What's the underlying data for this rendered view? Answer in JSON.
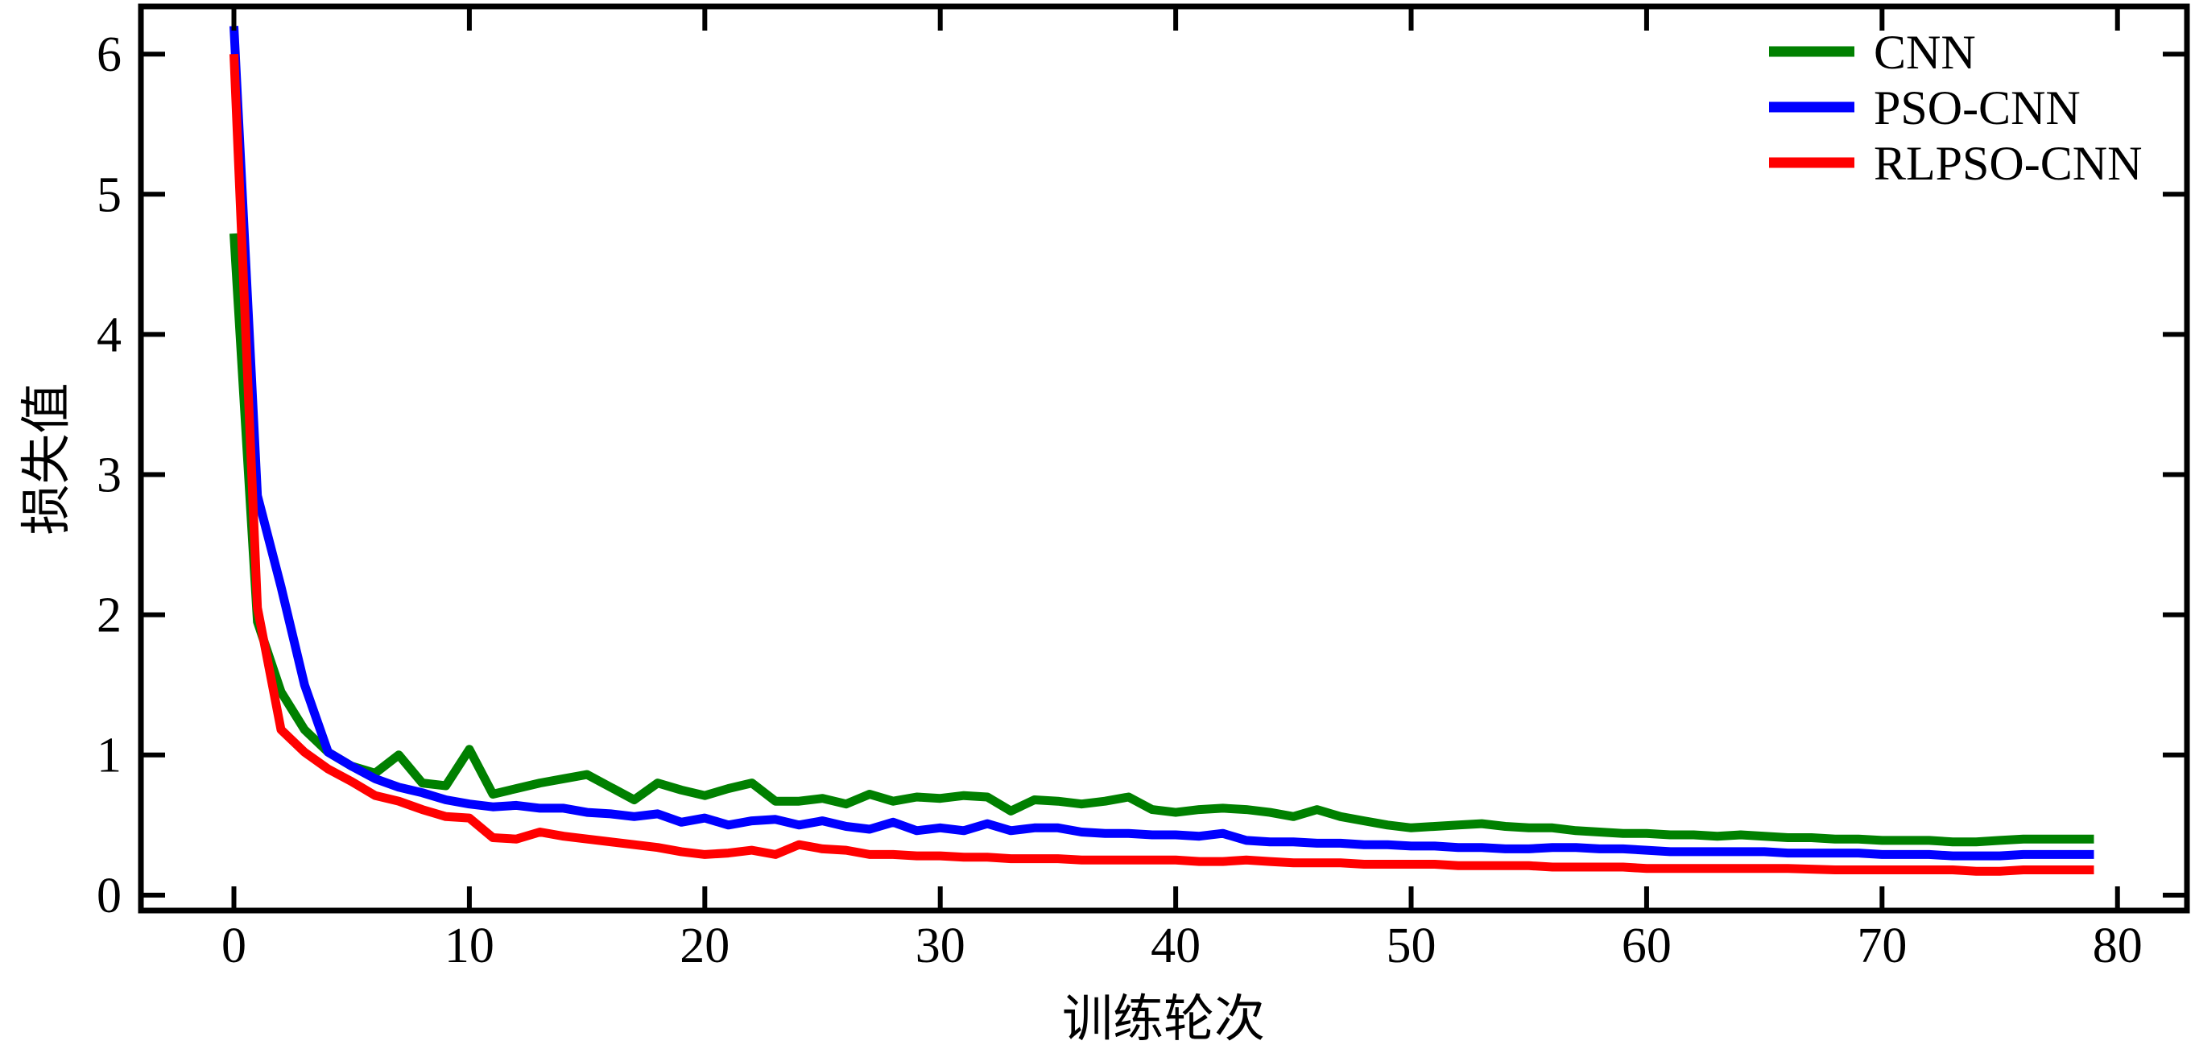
{
  "figure": {
    "background": "#ffffff",
    "xlabel": "训练轮次",
    "ylabel": "损失值",
    "axis_color": "#000000"
  },
  "legend": {
    "position": "upper right"
  },
  "chart_data": {
    "type": "line",
    "title": "",
    "xlabel": "训练轮次",
    "ylabel": "损失值",
    "xlim": [
      -3.95,
      82.95
    ],
    "ylim": [
      -0.11,
      6.34
    ],
    "xticks": [
      0,
      10,
      20,
      30,
      40,
      50,
      60,
      70,
      80
    ],
    "yticks": [
      0,
      1,
      2,
      3,
      4,
      5,
      6
    ],
    "xticklabels": [
      "0",
      "10",
      "20",
      "30",
      "40",
      "50",
      "60",
      "70",
      "80"
    ],
    "yticklabels": [
      "0",
      "1",
      "2",
      "3",
      "4",
      "5",
      "6"
    ],
    "grid": false,
    "legend_position": "upper right",
    "x": [
      0,
      1,
      2,
      3,
      4,
      5,
      6,
      7,
      8,
      9,
      10,
      11,
      12,
      13,
      14,
      15,
      16,
      17,
      18,
      19,
      20,
      21,
      22,
      23,
      24,
      25,
      26,
      27,
      28,
      29,
      30,
      31,
      32,
      33,
      34,
      35,
      36,
      37,
      38,
      39,
      40,
      41,
      42,
      43,
      44,
      45,
      46,
      47,
      48,
      49,
      50,
      51,
      52,
      53,
      54,
      55,
      56,
      57,
      58,
      59,
      60,
      61,
      62,
      63,
      64,
      65,
      66,
      67,
      68,
      69,
      70,
      71,
      72,
      73,
      74,
      75,
      76,
      77,
      78,
      79
    ],
    "series": [
      {
        "name": "CNN",
        "color": "#008000",
        "values": [
          4.72,
          1.95,
          1.45,
          1.18,
          1.02,
          0.92,
          0.87,
          1.0,
          0.8,
          0.78,
          1.04,
          0.72,
          0.76,
          0.8,
          0.83,
          0.86,
          0.77,
          0.68,
          0.8,
          0.75,
          0.71,
          0.76,
          0.8,
          0.67,
          0.67,
          0.69,
          0.65,
          0.72,
          0.67,
          0.7,
          0.69,
          0.71,
          0.7,
          0.6,
          0.68,
          0.67,
          0.65,
          0.67,
          0.7,
          0.61,
          0.59,
          0.61,
          0.62,
          0.61,
          0.59,
          0.56,
          0.61,
          0.56,
          0.53,
          0.5,
          0.48,
          0.49,
          0.5,
          0.51,
          0.49,
          0.48,
          0.48,
          0.46,
          0.45,
          0.44,
          0.44,
          0.43,
          0.43,
          0.42,
          0.43,
          0.42,
          0.41,
          0.41,
          0.4,
          0.4,
          0.39,
          0.39,
          0.39,
          0.38,
          0.38,
          0.39,
          0.4,
          0.4,
          0.4,
          0.4
        ]
      },
      {
        "name": "PSO-CNN",
        "color": "#0000FF",
        "values": [
          6.2,
          2.85,
          2.2,
          1.5,
          1.02,
          0.92,
          0.83,
          0.77,
          0.73,
          0.68,
          0.65,
          0.63,
          0.64,
          0.62,
          0.62,
          0.59,
          0.58,
          0.56,
          0.58,
          0.52,
          0.55,
          0.5,
          0.53,
          0.54,
          0.5,
          0.53,
          0.49,
          0.47,
          0.52,
          0.46,
          0.48,
          0.46,
          0.51,
          0.46,
          0.48,
          0.48,
          0.45,
          0.44,
          0.44,
          0.43,
          0.43,
          0.42,
          0.44,
          0.39,
          0.38,
          0.38,
          0.37,
          0.37,
          0.36,
          0.36,
          0.35,
          0.35,
          0.34,
          0.34,
          0.33,
          0.33,
          0.34,
          0.34,
          0.33,
          0.33,
          0.32,
          0.31,
          0.31,
          0.31,
          0.31,
          0.31,
          0.3,
          0.3,
          0.3,
          0.3,
          0.29,
          0.29,
          0.29,
          0.28,
          0.28,
          0.28,
          0.29,
          0.29,
          0.29,
          0.29
        ]
      },
      {
        "name": "RLPSO-CNN",
        "color": "#FF0000",
        "values": [
          6.0,
          2.05,
          1.18,
          1.02,
          0.9,
          0.81,
          0.71,
          0.67,
          0.61,
          0.56,
          0.55,
          0.41,
          0.4,
          0.45,
          0.42,
          0.4,
          0.38,
          0.36,
          0.34,
          0.31,
          0.29,
          0.3,
          0.32,
          0.29,
          0.36,
          0.33,
          0.32,
          0.29,
          0.29,
          0.28,
          0.28,
          0.27,
          0.27,
          0.26,
          0.26,
          0.26,
          0.25,
          0.25,
          0.25,
          0.25,
          0.25,
          0.24,
          0.24,
          0.25,
          0.24,
          0.23,
          0.23,
          0.23,
          0.22,
          0.22,
          0.22,
          0.22,
          0.21,
          0.21,
          0.21,
          0.21,
          0.2,
          0.2,
          0.2,
          0.2,
          0.19,
          0.19,
          0.19,
          0.19,
          0.19,
          0.19,
          0.19,
          0.185,
          0.18,
          0.18,
          0.18,
          0.18,
          0.18,
          0.18,
          0.17,
          0.17,
          0.18,
          0.18,
          0.18,
          0.18
        ]
      }
    ]
  }
}
